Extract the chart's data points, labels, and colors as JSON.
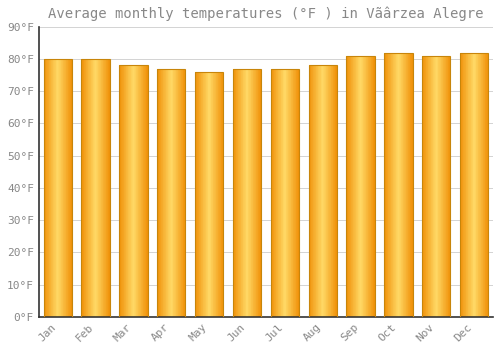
{
  "title": "Average monthly temperatures (°F ) in Vãârzea Alegre",
  "months": [
    "Jan",
    "Feb",
    "Mar",
    "Apr",
    "May",
    "Jun",
    "Jul",
    "Aug",
    "Sep",
    "Oct",
    "Nov",
    "Dec"
  ],
  "values": [
    80,
    80,
    78,
    77,
    76,
    77,
    77,
    78,
    81,
    82,
    81,
    82
  ],
  "bar_color_center": "#FFD966",
  "bar_color_edge": "#F5A623",
  "bar_outline_color": "#C8850A",
  "background_color": "#FFFFFF",
  "grid_color": "#CCCCCC",
  "text_color": "#888888",
  "spine_color": "#888888",
  "ylim": [
    0,
    90
  ],
  "yticks": [
    0,
    10,
    20,
    30,
    40,
    50,
    60,
    70,
    80,
    90
  ],
  "ytick_labels": [
    "0°F",
    "10°F",
    "20°F",
    "30°F",
    "40°F",
    "50°F",
    "60°F",
    "70°F",
    "80°F",
    "90°F"
  ],
  "title_fontsize": 10,
  "tick_fontsize": 8,
  "bar_width": 0.75
}
